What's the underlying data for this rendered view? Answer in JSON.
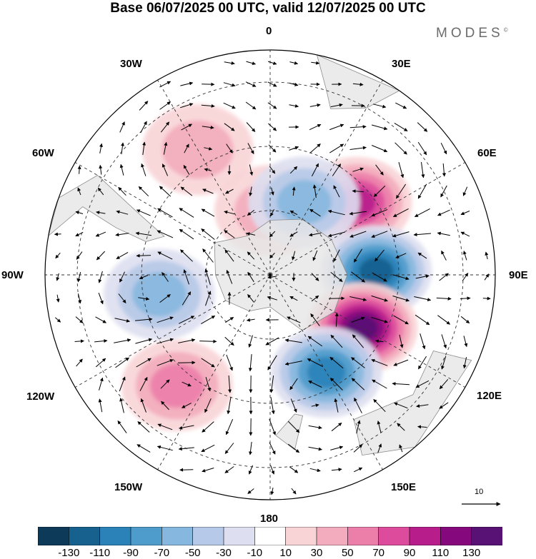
{
  "title": "Base 06/07/2025 00 UTC, valid 12/07/2025 00 UTC",
  "brand": "MODES",
  "brand_mark": "©",
  "longitude_labels": [
    "0",
    "30E",
    "60E",
    "90E",
    "120E",
    "150E",
    "180",
    "150W",
    "120W",
    "90W",
    "60W",
    "30W"
  ],
  "vector_scale_label": "10",
  "colorbar": {
    "tick_labels": [
      "-130",
      "-110",
      "-90",
      "-70",
      "-50",
      "-30",
      "-10",
      "10",
      "30",
      "50",
      "70",
      "90",
      "110",
      "130"
    ],
    "colors": [
      "#0e3a5a",
      "#17618f",
      "#2b82b9",
      "#4e9ccb",
      "#86b7de",
      "#b6c9e8",
      "#dddff0",
      "#ffffff",
      "#f8d4d6",
      "#f3acbd",
      "#ec7eaa",
      "#dc4b9c",
      "#b81d8c",
      "#86087d",
      "#581275"
    ]
  },
  "field_colors": {
    "ocean_background": "#ffffff",
    "land": "#e6e6e6",
    "coast": "#8c8c8c",
    "grid": "#333333"
  },
  "anomaly_centers": [
    {
      "name": "60E high",
      "lon": 50,
      "lat": -55,
      "value": 90
    },
    {
      "name": "90E low",
      "lon": 88,
      "lat": -57,
      "value": -110
    },
    {
      "name": "120E high",
      "lon": 120,
      "lat": -57,
      "value": 130
    },
    {
      "name": "150E low",
      "lon": 150,
      "lat": -55,
      "value": -90
    },
    {
      "name": "140W high",
      "lon": -140,
      "lat": -45,
      "value": 50
    },
    {
      "name": "100W low",
      "lon": -100,
      "lat": -55,
      "value": -50
    },
    {
      "name": "30W high",
      "lon": -30,
      "lat": -45,
      "value": 30
    },
    {
      "name": "0 high",
      "lon": 0,
      "lat": -70,
      "value": 30
    },
    {
      "name": "30E low",
      "lon": 25,
      "lat": -65,
      "value": -50
    }
  ]
}
